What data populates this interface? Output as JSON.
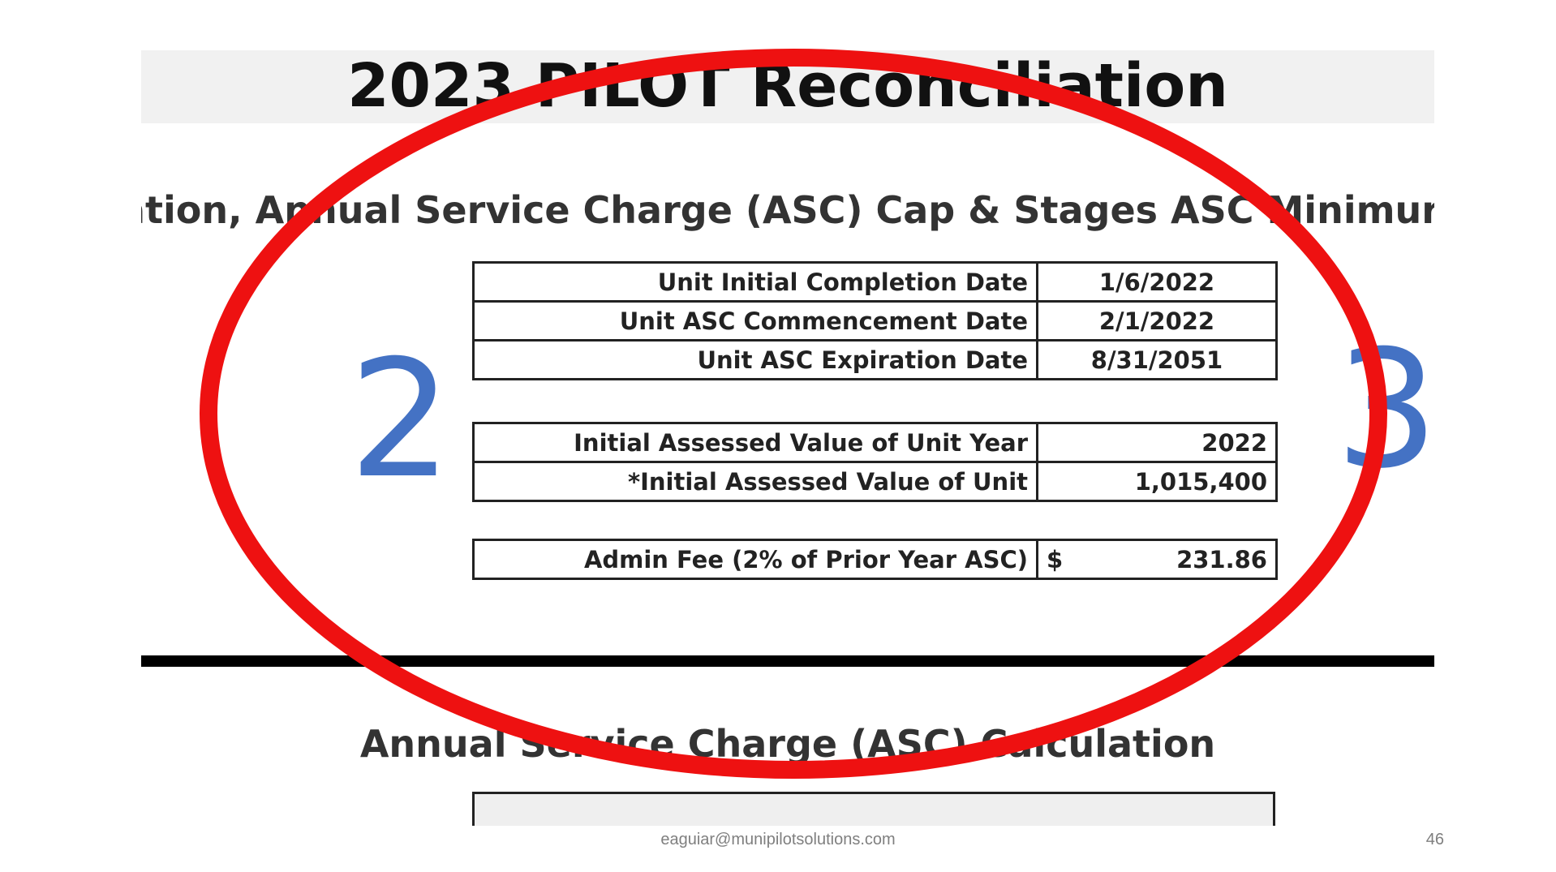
{
  "header": {
    "title": "2023 PILOT Reconciliation",
    "subtitle": "ation, Annual Service Charge (ASC) Cap & Stages ASC Minimur"
  },
  "dates_table": [
    {
      "label": "Unit Initial Completion Date",
      "value": "1/6/2022"
    },
    {
      "label": "Unit ASC Commencement Date",
      "value": "2/1/2022"
    },
    {
      "label": "Unit ASC Expiration Date",
      "value": "8/31/2051"
    }
  ],
  "assessed_table": [
    {
      "label": "Initial Assessed Value of Unit Year",
      "value": "2022"
    },
    {
      "label": "*Initial Assessed Value of Unit",
      "value": "1,015,400"
    }
  ],
  "fee_table": {
    "label": "Admin Fee (2% of Prior Year ASC)",
    "currency": "$",
    "value": "231.86"
  },
  "annotations": {
    "left_number": "2",
    "right_number": "3",
    "ellipse_color": "#ee1111",
    "number_color": "#4472c4"
  },
  "section2": {
    "title": "Annual Service Charge (ASC) Calculation"
  },
  "footer": {
    "email": "eaguiar@munipilotsolutions.com",
    "page_number": "46"
  }
}
